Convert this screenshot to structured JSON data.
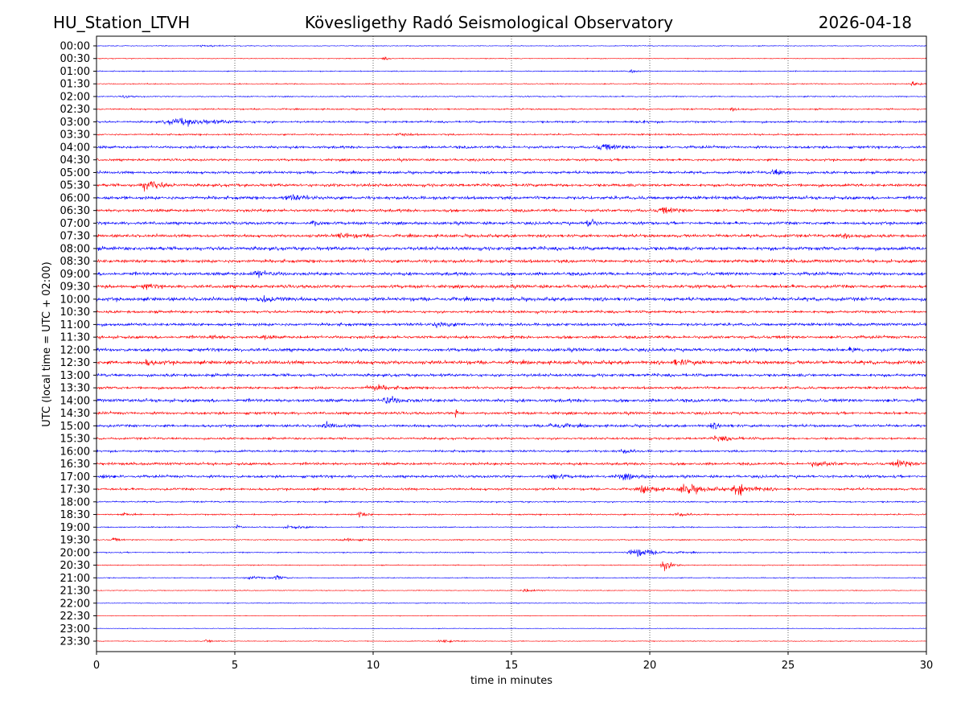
{
  "header": {
    "station": "HU_Station_LTVH",
    "observatory": "Kövesligethy Radó Seismological Observatory",
    "date": "2026-04-18"
  },
  "chart_data": {
    "type": "line",
    "subtype": "helicorder",
    "title": "Kövesligethy Radó Seismological Observatory",
    "xlabel": "time in minutes",
    "ylabel": "UTC (local time = UTC + 02:00)",
    "xlim": [
      0,
      30
    ],
    "x_ticks": [
      "0",
      "5",
      "10",
      "15",
      "20",
      "25",
      "30"
    ],
    "grid": "vertical dotted at 5-minute intervals",
    "colors": [
      "#0000ff",
      "#ff0000"
    ],
    "rows": [
      {
        "label": "00:00",
        "noise": 0.5,
        "events": [
          [
            3.8,
            1.2,
            0.8
          ]
        ]
      },
      {
        "label": "00:30",
        "noise": 0.5,
        "events": [
          [
            10.4,
            2,
            0.3
          ]
        ]
      },
      {
        "label": "01:00",
        "noise": 0.6,
        "events": [
          [
            19.3,
            2,
            0.4
          ]
        ]
      },
      {
        "label": "01:30",
        "noise": 0.6,
        "events": [
          [
            29.5,
            2.5,
            0.6
          ]
        ]
      },
      {
        "label": "02:00",
        "noise": 0.7,
        "events": [
          [
            1,
            1.5,
            0.5
          ]
        ]
      },
      {
        "label": "02:30",
        "noise": 0.9,
        "events": [
          [
            23,
            2,
            0.6
          ]
        ]
      },
      {
        "label": "03:00",
        "noise": 1.2,
        "events": [
          [
            3.0,
            4,
            2.5
          ],
          [
            19.5,
            2,
            0.6
          ]
        ]
      },
      {
        "label": "03:30",
        "noise": 1.0,
        "events": [
          [
            11,
            2,
            0.6
          ]
        ]
      },
      {
        "label": "04:00",
        "noise": 1.6,
        "events": [
          [
            18.3,
            3.5,
            1
          ]
        ]
      },
      {
        "label": "04:30",
        "noise": 1.4,
        "events": []
      },
      {
        "label": "05:00",
        "noise": 1.6,
        "events": [
          [
            24.5,
            4,
            0.6
          ]
        ]
      },
      {
        "label": "05:30",
        "noise": 1.8,
        "events": [
          [
            1.8,
            7,
            0.8
          ],
          [
            8.6,
            3,
            0.2
          ]
        ]
      },
      {
        "label": "06:00",
        "noise": 2.0,
        "events": [
          [
            7,
            3,
            1
          ]
        ]
      },
      {
        "label": "06:30",
        "noise": 1.8,
        "events": [
          [
            20.5,
            3,
            1
          ]
        ]
      },
      {
        "label": "07:00",
        "noise": 1.8,
        "events": [
          [
            17.8,
            10,
            0.3
          ],
          [
            7.8,
            3,
            0.5
          ]
        ]
      },
      {
        "label": "07:30",
        "noise": 1.8,
        "events": [
          [
            8.8,
            3,
            1
          ],
          [
            27,
            2.5,
            1
          ]
        ]
      },
      {
        "label": "08:00",
        "noise": 2.2,
        "events": []
      },
      {
        "label": "08:30",
        "noise": 2.0,
        "events": []
      },
      {
        "label": "09:00",
        "noise": 2.0,
        "events": [
          [
            5.8,
            4,
            0.8
          ]
        ]
      },
      {
        "label": "09:30",
        "noise": 2.0,
        "events": [
          [
            1.8,
            3,
            0.5
          ]
        ]
      },
      {
        "label": "10:00",
        "noise": 2.2,
        "events": [
          [
            6,
            3.5,
            1
          ]
        ]
      },
      {
        "label": "10:30",
        "noise": 1.6,
        "events": []
      },
      {
        "label": "11:00",
        "noise": 1.8,
        "events": [
          [
            12.3,
            3,
            0.8
          ]
        ]
      },
      {
        "label": "11:30",
        "noise": 1.8,
        "events": [
          [
            4.2,
            2.5,
            0.5
          ],
          [
            6,
            2.5,
            0.4
          ]
        ]
      },
      {
        "label": "12:00",
        "noise": 2.0,
        "events": [
          [
            27.3,
            3,
            0.4
          ]
        ]
      },
      {
        "label": "12:30",
        "noise": 2.2,
        "events": [
          [
            1.8,
            3,
            0.6
          ],
          [
            21,
            3,
            1
          ]
        ]
      },
      {
        "label": "13:00",
        "noise": 1.8,
        "events": []
      },
      {
        "label": "13:30",
        "noise": 1.6,
        "events": [
          [
            10,
            3,
            1.2
          ]
        ]
      },
      {
        "label": "14:00",
        "noise": 2.0,
        "events": [
          [
            10.5,
            5,
            0.8
          ]
        ]
      },
      {
        "label": "14:30",
        "noise": 1.6,
        "events": [
          [
            13,
            5,
            0.2
          ]
        ]
      },
      {
        "label": "15:00",
        "noise": 1.6,
        "events": [
          [
            8.3,
            3,
            0.8
          ],
          [
            16.5,
            3,
            1
          ],
          [
            22.3,
            3,
            0.6
          ]
        ]
      },
      {
        "label": "15:30",
        "noise": 1.3,
        "events": [
          [
            22.5,
            3,
            1
          ]
        ]
      },
      {
        "label": "16:00",
        "noise": 1.3,
        "events": [
          [
            19,
            2.5,
            0.6
          ]
        ]
      },
      {
        "label": "16:30",
        "noise": 1.6,
        "events": [
          [
            26,
            3,
            1
          ],
          [
            29,
            4,
            1
          ]
        ]
      },
      {
        "label": "17:00",
        "noise": 1.6,
        "events": [
          [
            16.5,
            3,
            0.8
          ],
          [
            19,
            3,
            1
          ],
          [
            0.2,
            3,
            0.4
          ]
        ]
      },
      {
        "label": "17:30",
        "noise": 1.4,
        "events": [
          [
            19.8,
            5,
            0.8
          ],
          [
            21.3,
            6,
            1.2
          ],
          [
            23.2,
            7,
            1
          ]
        ]
      },
      {
        "label": "18:00",
        "noise": 0.9,
        "events": []
      },
      {
        "label": "18:30",
        "noise": 0.9,
        "events": [
          [
            9.5,
            4,
            0.4
          ],
          [
            21,
            2.5,
            0.6
          ],
          [
            1,
            2,
            0.5
          ]
        ]
      },
      {
        "label": "19:00",
        "noise": 0.7,
        "events": [
          [
            5.1,
            3,
            0.2
          ],
          [
            7,
            2,
            1
          ]
        ]
      },
      {
        "label": "19:30",
        "noise": 0.7,
        "events": [
          [
            0.6,
            3,
            0.3
          ],
          [
            9,
            2,
            1
          ]
        ]
      },
      {
        "label": "20:00",
        "noise": 0.7,
        "events": [
          [
            19.5,
            5,
            1.5
          ]
        ]
      },
      {
        "label": "20:30",
        "noise": 0.6,
        "events": [
          [
            20.5,
            7,
            0.6
          ]
        ]
      },
      {
        "label": "21:00",
        "noise": 0.6,
        "events": [
          [
            6.5,
            3,
            0.5
          ],
          [
            5.5,
            2,
            0.8
          ]
        ]
      },
      {
        "label": "21:30",
        "noise": 0.5,
        "events": [
          [
            15.5,
            2,
            0.8
          ]
        ]
      },
      {
        "label": "22:00",
        "noise": 0.5,
        "events": []
      },
      {
        "label": "22:30",
        "noise": 0.4,
        "events": []
      },
      {
        "label": "23:00",
        "noise": 0.4,
        "events": []
      },
      {
        "label": "23:30",
        "noise": 0.5,
        "events": [
          [
            4,
            2,
            0.5
          ],
          [
            12.5,
            2,
            0.8
          ]
        ]
      }
    ]
  }
}
